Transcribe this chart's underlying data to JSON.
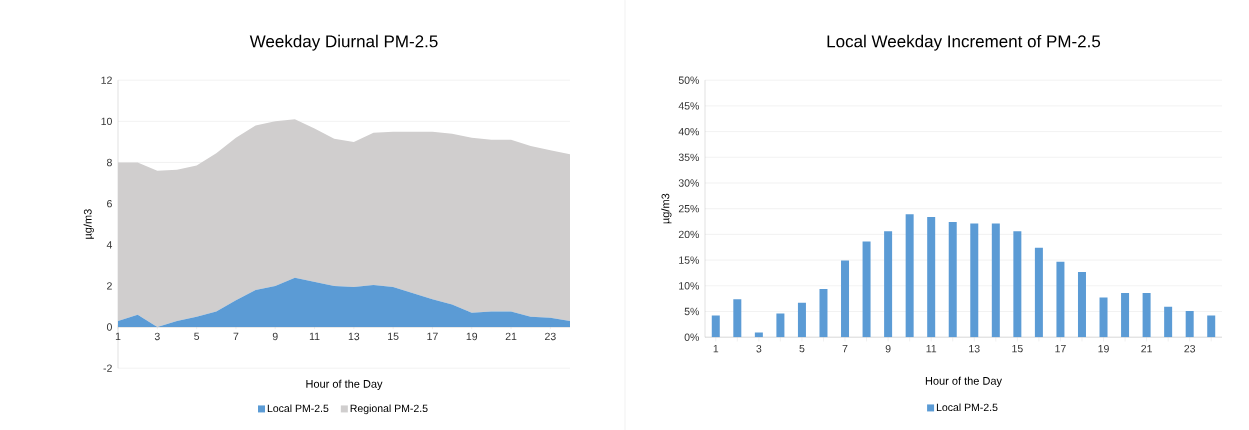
{
  "chart_data": [
    {
      "type": "area",
      "title": "Weekday Diurnal PM-2.5",
      "xlabel": "Hour of the Day",
      "ylabel": "µg/m3",
      "stacked": true,
      "grid": "y",
      "legend": "bottom",
      "x": [
        1,
        2,
        3,
        4,
        5,
        6,
        7,
        8,
        9,
        10,
        11,
        12,
        13,
        14,
        15,
        16,
        17,
        18,
        19,
        20,
        21,
        22,
        23,
        24
      ],
      "xlim": [
        1,
        24
      ],
      "xticks": [
        1,
        3,
        5,
        7,
        9,
        11,
        13,
        15,
        17,
        19,
        21,
        23
      ],
      "ylim": [
        -2,
        12
      ],
      "yticks": [
        -2,
        0,
        2,
        4,
        6,
        8,
        10,
        12
      ],
      "series": [
        {
          "name": "Local PM-2.5",
          "color": "#5b9bd5",
          "values": [
            0.3,
            0.6,
            0.0,
            0.3,
            0.5,
            0.75,
            1.3,
            1.8,
            2.0,
            2.4,
            2.2,
            2.0,
            1.95,
            2.05,
            1.95,
            1.65,
            1.35,
            1.1,
            0.7,
            0.75,
            0.75,
            0.5,
            0.45,
            0.3
          ]
        },
        {
          "name": "Regional PM-2.5",
          "color": "#d0cece",
          "values": [
            7.7,
            7.4,
            7.6,
            7.35,
            7.35,
            7.7,
            7.9,
            8.0,
            8.0,
            7.7,
            7.45,
            7.15,
            7.05,
            7.4,
            7.55,
            7.85,
            8.15,
            8.3,
            8.5,
            8.35,
            8.35,
            8.3,
            8.15,
            8.1
          ]
        }
      ]
    },
    {
      "type": "bar",
      "title": "Local Weekday Increment of PM-2.5",
      "xlabel": "Hour of the Day",
      "ylabel": "µg/m3",
      "grid": "y",
      "legend": "bottom",
      "categories": [
        "1",
        null,
        "3",
        null,
        "5",
        null,
        "7",
        null,
        "9",
        null,
        "11",
        null,
        "13",
        null,
        "15",
        null,
        "17",
        null,
        "19",
        null,
        "21",
        null,
        "23",
        null
      ],
      "ylim": [
        0,
        50
      ],
      "yticks": [
        {
          "value": 0,
          "label": "0%"
        },
        {
          "value": 5,
          "label": "5%"
        },
        {
          "value": 10,
          "label": "10%"
        },
        {
          "value": 15,
          "label": "15%"
        },
        {
          "value": 20,
          "label": "20%"
        },
        {
          "value": 25,
          "label": "25%"
        },
        {
          "value": 30,
          "label": "30%"
        },
        {
          "value": 35,
          "label": "35%"
        },
        {
          "value": 40,
          "label": "40%"
        },
        {
          "value": 45,
          "label": "45%"
        },
        {
          "value": 50,
          "label": "50%"
        }
      ],
      "series": [
        {
          "name": "Local PM-2.5",
          "color": "#5b9bd5",
          "values": [
            4.2,
            7.4,
            0.9,
            4.6,
            6.7,
            9.4,
            14.9,
            18.6,
            20.6,
            23.9,
            23.4,
            22.4,
            22.1,
            22.1,
            20.6,
            17.4,
            14.7,
            12.7,
            7.7,
            8.6,
            8.6,
            5.9,
            5.1,
            4.2
          ]
        }
      ]
    }
  ]
}
